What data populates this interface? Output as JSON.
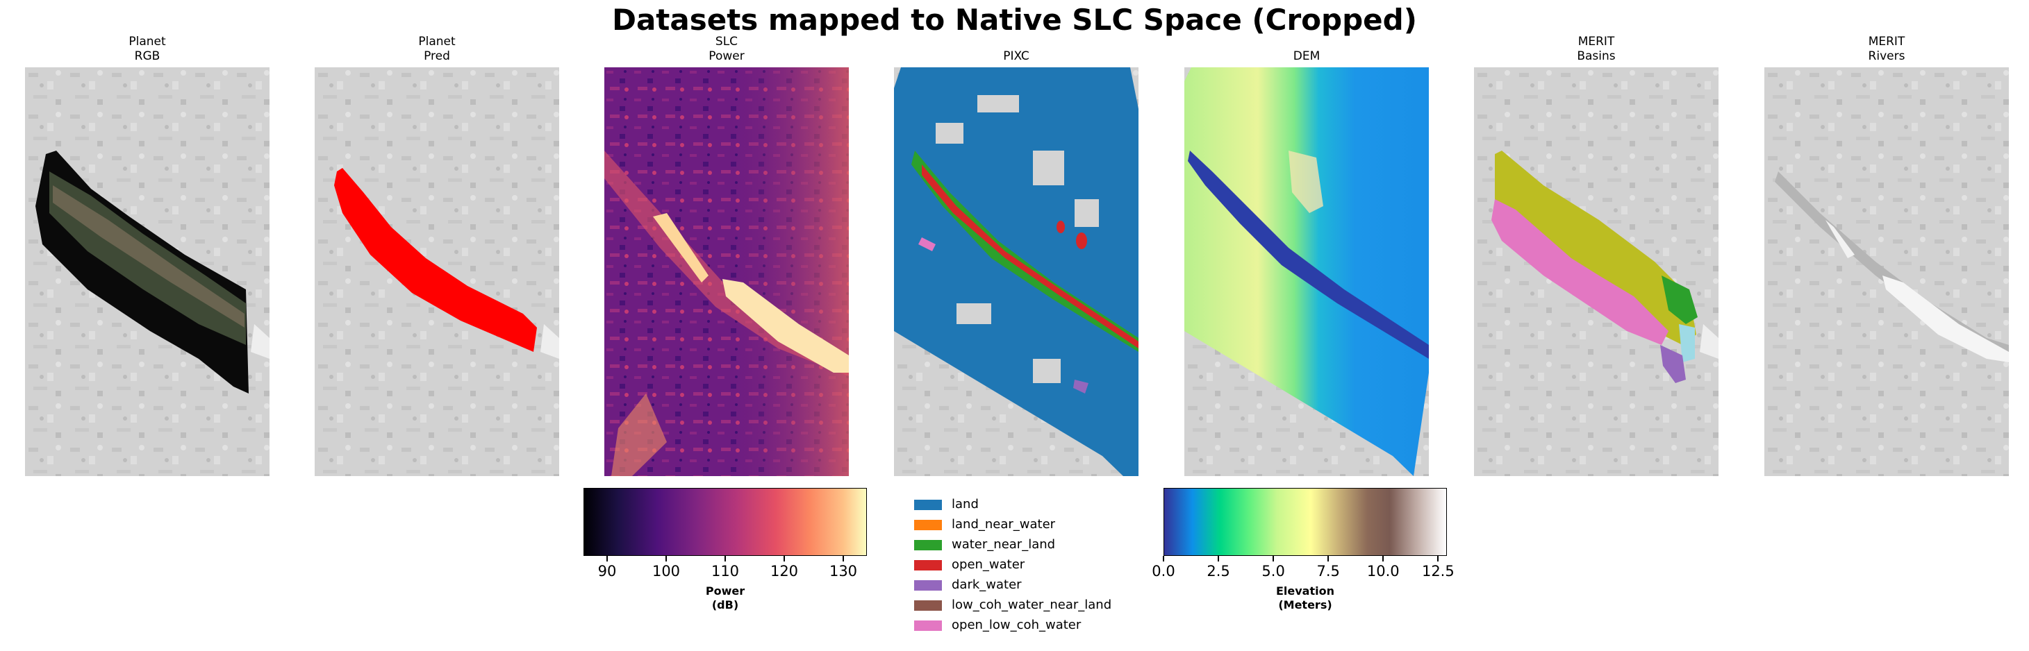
{
  "figure": {
    "title": "Datasets mapped to Native SLC Space (Cropped)"
  },
  "panels": [
    {
      "id": "planet-rgb",
      "title_line1": "Planet",
      "title_line2": "RGB"
    },
    {
      "id": "planet-pred",
      "title_line1": "Planet",
      "title_line2": "Pred"
    },
    {
      "id": "slc-power",
      "title_line1": "SLC",
      "title_line2": "Power"
    },
    {
      "id": "pixc",
      "title_line1": "PIXC",
      "title_line2": ""
    },
    {
      "id": "dem",
      "title_line1": "DEM",
      "title_line2": ""
    },
    {
      "id": "merit-basins",
      "title_line1": "MERIT",
      "title_line2": "Basins"
    },
    {
      "id": "merit-rivers",
      "title_line1": "MERIT",
      "title_line2": "Rivers"
    }
  ],
  "power_colorbar": {
    "label_line1": "Power",
    "label_line2": "(dB)",
    "range": [
      86,
      134
    ],
    "ticks": [
      "90",
      "100",
      "110",
      "120",
      "130"
    ],
    "tick_values": [
      90,
      100,
      110,
      120,
      130
    ]
  },
  "elevation_colorbar": {
    "label_line1": "Elevation",
    "label_line2": "(Meters)",
    "range": [
      0,
      12.9
    ],
    "ticks": [
      "0.0",
      "2.5",
      "5.0",
      "7.5",
      "10.0",
      "12.5"
    ],
    "tick_values": [
      0,
      2.5,
      5,
      7.5,
      10,
      12.5
    ]
  },
  "pixc_legend": [
    {
      "label": "land",
      "color": "#1f77b4"
    },
    {
      "label": "land_near_water",
      "color": "#ff7f0e"
    },
    {
      "label": "water_near_land",
      "color": "#2ca02c"
    },
    {
      "label": "open_water",
      "color": "#d62728"
    },
    {
      "label": "dark_water",
      "color": "#9467bd"
    },
    {
      "label": "low_coh_water_near_land",
      "color": "#8c564b"
    },
    {
      "label": "open_low_coh_water",
      "color": "#e377c2"
    }
  ]
}
